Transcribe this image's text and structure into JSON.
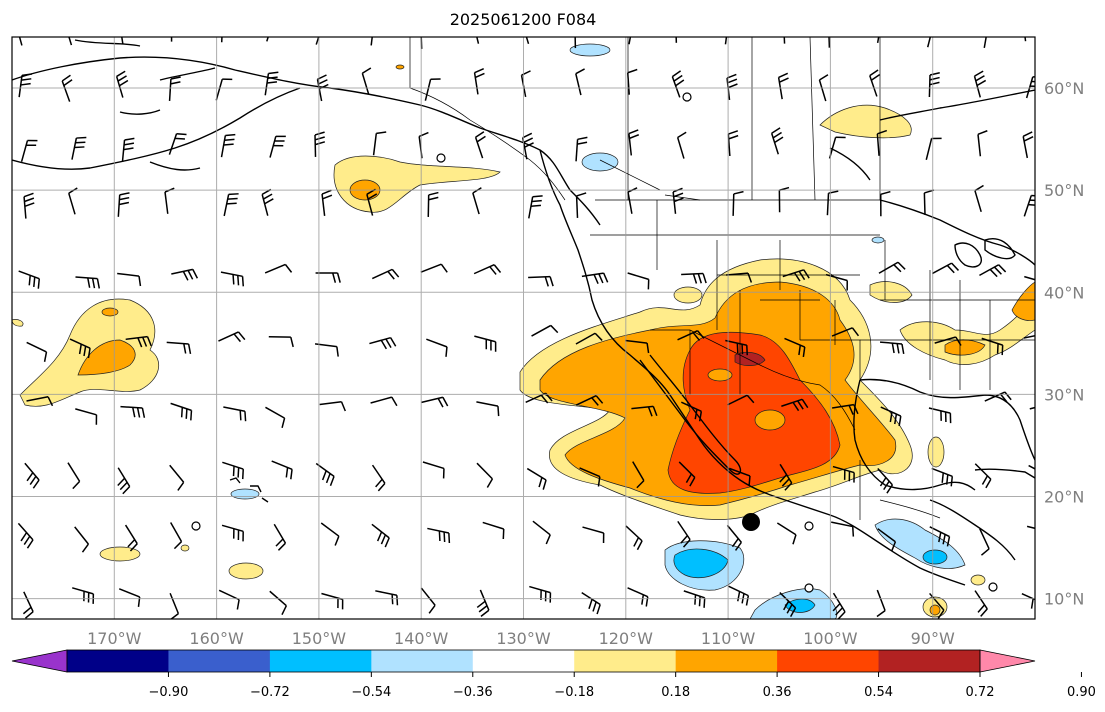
{
  "title": "2025061200 F084",
  "map": {
    "lon_range": [
      -180,
      -80
    ],
    "lat_range": [
      8,
      65
    ],
    "lon_grid": [
      -170,
      -160,
      -150,
      -140,
      -130,
      -120,
      -110,
      -100,
      -90,
      -80
    ],
    "lat_grid": [
      10,
      20,
      30,
      40,
      50,
      60
    ],
    "lon_labels": [
      "170°W",
      "160°W",
      "150°W",
      "140°W",
      "130°W",
      "120°W",
      "110°W",
      "100°W",
      "90°W"
    ],
    "lat_labels": [
      "10°N",
      "20°N",
      "30°N",
      "40°N",
      "50°N",
      "60°N"
    ],
    "grid": true
  },
  "colorbar": {
    "colors": [
      "#9933cc",
      "#000088",
      "#3a5fcd",
      "#00bfff",
      "#b0e2ff",
      "#ffffff",
      "#ffec8b",
      "#ffa500",
      "#ff4500",
      "#b22222",
      "#ff88aa"
    ],
    "tick_labels": [
      "−0.90",
      "−0.72",
      "−0.54",
      "−0.36",
      "−0.18",
      "0.18",
      "0.36",
      "0.54",
      "0.72",
      "0.90"
    ]
  },
  "markers": {
    "filled_dot_icon": "filled-circle",
    "open_dot_icon": "open-circle"
  }
}
